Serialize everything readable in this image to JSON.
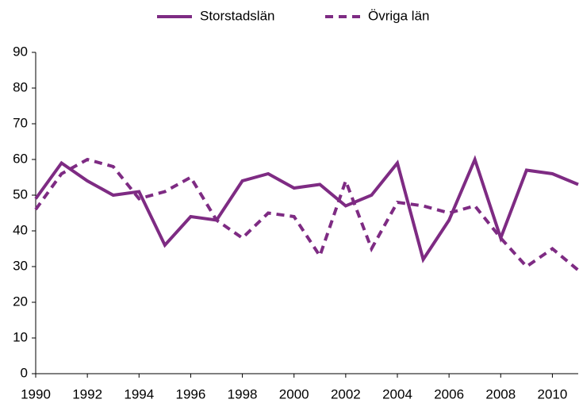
{
  "chart_data": {
    "type": "line",
    "x": [
      1990,
      1991,
      1992,
      1993,
      1994,
      1995,
      1996,
      1997,
      1998,
      1999,
      2000,
      2001,
      2002,
      2003,
      2004,
      2005,
      2006,
      2007,
      2008,
      2009,
      2010,
      2011
    ],
    "series": [
      {
        "name": "Storstadslän",
        "color": "#7e2b83",
        "dash": false,
        "values": [
          49,
          59,
          54,
          50,
          51,
          36,
          44,
          43,
          54,
          56,
          52,
          53,
          47,
          50,
          59,
          32,
          43,
          60,
          38,
          57,
          56,
          53
        ]
      },
      {
        "name": "Övriga län",
        "color": "#7e2b83",
        "dash": true,
        "values": [
          46,
          56,
          60,
          58,
          49,
          51,
          55,
          43,
          38,
          45,
          44,
          33,
          54,
          35,
          48,
          47,
          45,
          47,
          38,
          30,
          35,
          29
        ]
      }
    ],
    "xlim": [
      1990,
      2011
    ],
    "xticks": [
      1990,
      1992,
      1994,
      1996,
      1998,
      2000,
      2002,
      2004,
      2006,
      2008,
      2010
    ],
    "ylim": [
      0,
      90
    ],
    "yticks": [
      0,
      10,
      20,
      30,
      40,
      50,
      60,
      70,
      80,
      90
    ],
    "legend": "top"
  }
}
